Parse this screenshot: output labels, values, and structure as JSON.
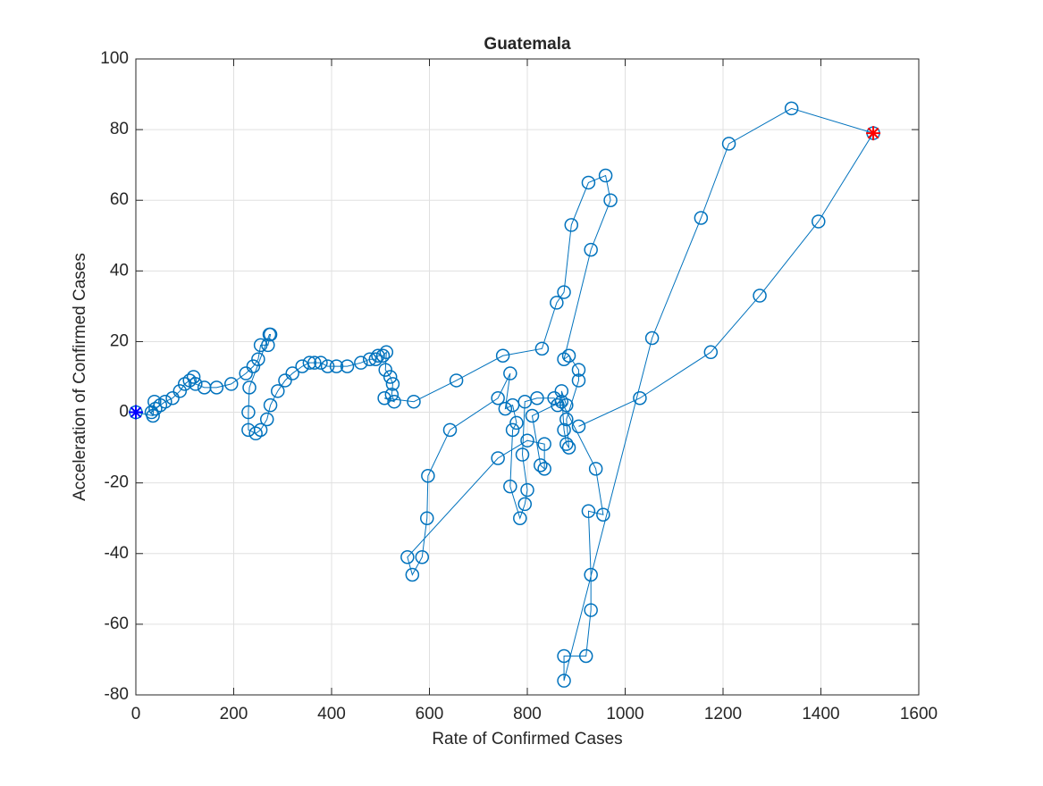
{
  "chart_data": {
    "type": "line",
    "title": "Guatemala",
    "xlabel": "Rate of Confirmed Cases",
    "ylabel": "Acceleration of Confirmed Cases",
    "xlim": [
      0,
      1600
    ],
    "xticks": [
      0,
      200,
      400,
      600,
      800,
      1000,
      1200,
      1400,
      1600
    ],
    "ylim": [
      -80,
      100
    ],
    "yticks": [
      -80,
      -60,
      -40,
      -20,
      0,
      20,
      40,
      60,
      80,
      100
    ],
    "grid": true,
    "series": [
      {
        "color": "#0072bd",
        "marker": "o",
        "x": [
          0,
          35,
          38,
          32,
          40,
          50,
          60,
          75,
          90,
          100,
          110,
          118,
          122,
          140,
          165,
          195,
          225,
          240,
          250,
          255,
          270,
          275,
          273,
          232,
          230,
          230,
          245,
          255,
          268,
          275,
          290,
          305,
          320,
          340,
          355,
          365,
          378,
          392,
          410,
          432,
          460,
          478,
          490,
          495,
          505,
          512,
          510,
          520,
          525,
          523,
          528,
          508,
          568,
          655,
          750,
          830,
          860,
          875,
          890,
          925,
          960,
          970,
          930,
          875,
          885,
          905,
          905,
          880,
          885,
          880,
          875,
          870,
          880,
          862,
          855,
          820,
          795,
          790,
          800,
          795,
          785,
          765,
          770,
          778,
          770,
          755,
          765,
          740,
          642,
          597,
          595,
          585,
          565,
          555,
          740,
          800,
          835,
          835,
          827,
          810,
          870,
          940,
          955,
          925,
          930,
          930,
          920,
          875,
          875,
          1055,
          1155,
          1212,
          1340,
          1507,
          1395,
          1275,
          1175,
          1030,
          905
        ],
        "values": [
          0,
          -1,
          3,
          0,
          1,
          2,
          3,
          4,
          6,
          8,
          9,
          10,
          8,
          7,
          7,
          8,
          11,
          13,
          15,
          19,
          19,
          22,
          22,
          7,
          0,
          -5,
          -6,
          -5,
          -2,
          2,
          6,
          9,
          11,
          13,
          14,
          14,
          14,
          13,
          13,
          13,
          14,
          15,
          15,
          16,
          16,
          17,
          12,
          10,
          8,
          5,
          3,
          4,
          3,
          9,
          16,
          18,
          31,
          34,
          53,
          65,
          67,
          60,
          46,
          15,
          16,
          12,
          9,
          -2,
          -10,
          -9,
          -5,
          6,
          2,
          2,
          4,
          4,
          3,
          -12,
          -22,
          -26,
          -30,
          -21,
          -5,
          -3,
          2,
          1,
          11,
          4,
          -5,
          -18,
          -30,
          -41,
          -46,
          -41,
          -13,
          -8,
          -9,
          -16,
          -15,
          -1,
          3,
          -16,
          -29,
          -28,
          -46,
          -56,
          -69,
          -69,
          -76,
          21,
          55,
          76,
          86,
          79,
          54,
          33,
          17,
          4,
          -4
        ]
      },
      {
        "color": "#0000ff",
        "marker": "*",
        "x": [
          0
        ],
        "values": [
          0
        ]
      },
      {
        "color": "#ff0000",
        "marker": "*",
        "x": [
          1507
        ],
        "values": [
          79
        ]
      }
    ]
  }
}
